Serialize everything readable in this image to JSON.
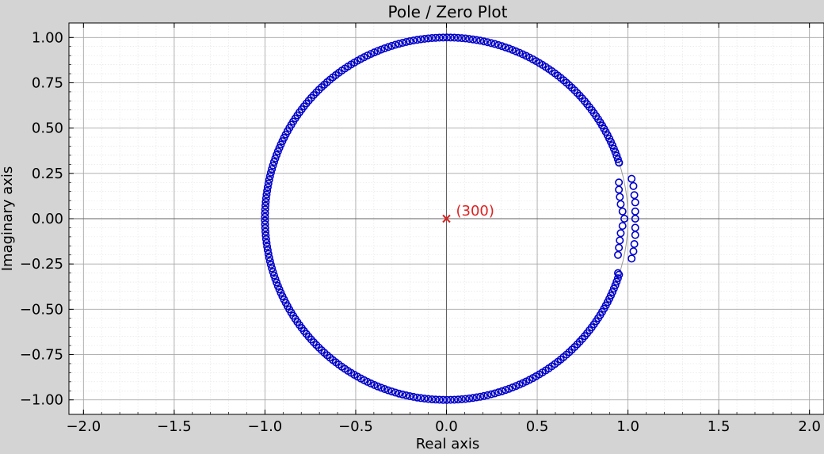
{
  "window": {
    "background": "#d4d4d4",
    "plot_background": "#ffffff"
  },
  "chart_data": {
    "type": "scatter",
    "title": "Pole / Zero Plot",
    "xlabel": "Real axis",
    "ylabel": "Imaginary axis",
    "xlim": [
      -2.08,
      2.08
    ],
    "ylim": [
      -1.08,
      1.08
    ],
    "xticks": [
      -2.0,
      -1.5,
      -1.0,
      -0.5,
      0.0,
      0.5,
      1.0,
      1.5,
      2.0
    ],
    "xtick_labels": [
      "−2.0",
      "−1.5",
      "−1.0",
      "−0.5",
      "0.0",
      "0.5",
      "1.0",
      "1.5",
      "2.0"
    ],
    "yticks": [
      1.0,
      0.75,
      0.5,
      0.25,
      0.0,
      -0.25,
      -0.5,
      -0.75,
      -1.0
    ],
    "ytick_labels": [
      "1.00",
      "0.75",
      "0.50",
      "0.25",
      "0.00",
      "−0.25",
      "−0.50",
      "−0.75",
      "−1.00"
    ],
    "grid": true,
    "minor_grid": true,
    "unit_circle": true,
    "series": [
      {
        "marker": "circle-open",
        "color": "#0000cc",
        "points": {
          "main_ring": {
            "radius": 1.0,
            "angle_start_deg": 18.0,
            "angle_end_deg": 342.0,
            "count": 276
          },
          "inner_arc_x": [
            0.95,
            0.95,
            0.95,
            0.955,
            0.96,
            0.97,
            0.98,
            0.97,
            0.96,
            0.955,
            0.95,
            0.945,
            0.945
          ],
          "inner_arc_y": [
            0.31,
            0.2,
            0.16,
            0.12,
            0.08,
            0.04,
            0.0,
            -0.04,
            -0.08,
            -0.12,
            -0.16,
            -0.2,
            -0.3
          ],
          "outer_arc_x": [
            1.02,
            1.03,
            1.035,
            1.04,
            1.04,
            1.04,
            1.04,
            1.04,
            1.035,
            1.03,
            1.02
          ],
          "outer_arc_y": [
            0.22,
            0.18,
            0.13,
            0.09,
            0.04,
            0.0,
            -0.05,
            -0.09,
            -0.14,
            -0.18,
            -0.22
          ]
        }
      },
      {
        "marker": "x",
        "color": "#dd2222",
        "x": [
          0.0
        ],
        "y": [
          0.0
        ],
        "annotation": "(300)"
      }
    ]
  }
}
